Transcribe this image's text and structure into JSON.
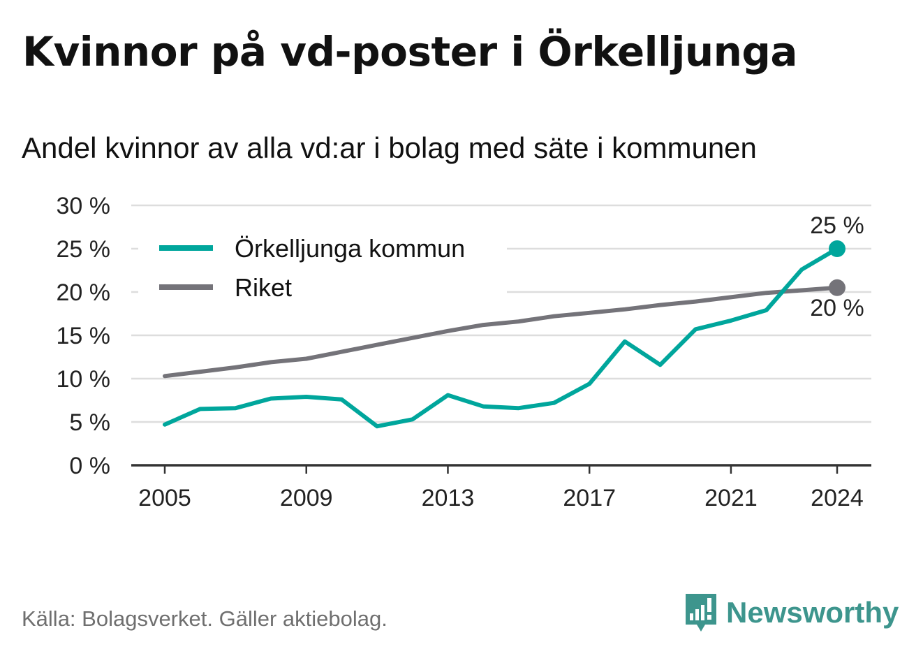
{
  "title": "Kvinnor på vd-poster i Örkelljunga",
  "subtitle": "Andel kvinnor av alla vd:ar i bolag med säte i kommunen",
  "source": "Källa: Bolagsverket. Gäller aktiebolag.",
  "brand": "Newsworthy",
  "colors": {
    "orkelljunga": "#00a69c",
    "riket": "#747379",
    "grid": "#dddddd",
    "axis": "#333333",
    "brand": "#3d958d"
  },
  "icons": {
    "logo": "newsworthy-logo-icon"
  },
  "chart_data": {
    "type": "line",
    "x": [
      2005,
      2006,
      2007,
      2008,
      2009,
      2010,
      2011,
      2012,
      2013,
      2014,
      2015,
      2016,
      2017,
      2018,
      2019,
      2020,
      2021,
      2022,
      2023,
      2024
    ],
    "x_ticks": [
      2005,
      2009,
      2013,
      2017,
      2021,
      2024
    ],
    "x_tick_labels": [
      "2005",
      "2009",
      "2013",
      "2017",
      "2021",
      "2024"
    ],
    "y_ticks": [
      0,
      5,
      10,
      15,
      20,
      25,
      30
    ],
    "y_tick_labels": [
      "0 %",
      "5 %",
      "10 %",
      "15 %",
      "20 %",
      "25 %",
      "30 %"
    ],
    "ylim": [
      0,
      30
    ],
    "grid": true,
    "legend_position": "top-left",
    "series": [
      {
        "name": "Örkelljunga kommun",
        "color": "#00a69c",
        "values": [
          4.7,
          6.5,
          6.6,
          7.7,
          7.9,
          7.6,
          4.5,
          5.3,
          8.1,
          6.8,
          6.6,
          7.2,
          9.4,
          14.3,
          11.6,
          15.7,
          16.7,
          17.9,
          22.6,
          25.0
        ],
        "end_label": "25 %"
      },
      {
        "name": "Riket",
        "color": "#747379",
        "values": [
          10.3,
          10.8,
          11.3,
          11.9,
          12.3,
          13.1,
          13.9,
          14.7,
          15.5,
          16.2,
          16.6,
          17.2,
          17.6,
          18.0,
          18.5,
          18.9,
          19.4,
          19.9,
          20.2,
          20.5
        ],
        "end_label": "20 %"
      }
    ]
  }
}
